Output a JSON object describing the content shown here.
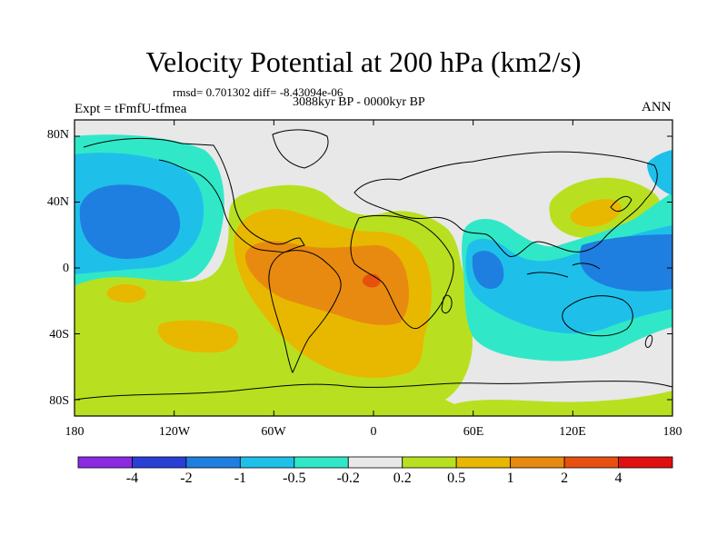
{
  "title": "Velocity Potential at 200 hPa (km2/s)",
  "stats": "rmsd= 0.701302 diff= -8.43094e-06",
  "expt": "Expt = tFmfU-tfmea",
  "period": "3088kyr BP - 0000kyr BP",
  "season": "ANN",
  "lat_labels": [
    "80N",
    "40N",
    "0",
    "40S",
    "80S"
  ],
  "lon_labels": [
    "180",
    "120W",
    "60W",
    "0",
    "60E",
    "120E",
    "180"
  ],
  "colorbar": {
    "colors": [
      "#8a2be2",
      "#2a3fd6",
      "#1e7fe0",
      "#1ec0ea",
      "#30e8c8",
      "#e8e8e8",
      "#b8e020",
      "#e8b800",
      "#e88a10",
      "#e85010",
      "#e01010"
    ],
    "labels": [
      "-4",
      "-2",
      "-1",
      "-0.5",
      "-0.2",
      "0.2",
      "0.5",
      "1",
      "2",
      "4"
    ]
  },
  "palette": {
    "ocean_bg": "#e8e8e8",
    "light_green": "#b8e020",
    "gold": "#e8b800",
    "orange": "#e88a10",
    "red_orange": "#e85010",
    "cyan_green": "#30e8c8",
    "cyan": "#1ec0ea",
    "blue": "#1e7fe0"
  }
}
